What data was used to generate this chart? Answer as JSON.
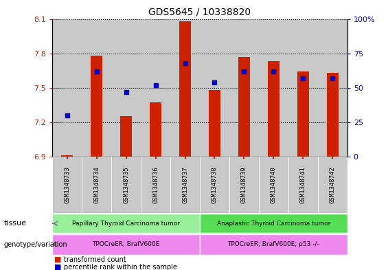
{
  "title": "GDS5645 / 10338820",
  "samples": [
    "GSM1348733",
    "GSM1348734",
    "GSM1348735",
    "GSM1348736",
    "GSM1348737",
    "GSM1348738",
    "GSM1348739",
    "GSM1348740",
    "GSM1348741",
    "GSM1348742"
  ],
  "bar_values": [
    6.91,
    7.78,
    7.25,
    7.37,
    8.08,
    7.48,
    7.77,
    7.73,
    7.64,
    7.63
  ],
  "dot_values": [
    30,
    62,
    47,
    52,
    68,
    54,
    62,
    62,
    57,
    57
  ],
  "ylim_left": [
    6.9,
    8.1
  ],
  "ylim_right": [
    0,
    100
  ],
  "yticks_left": [
    6.9,
    7.2,
    7.5,
    7.8,
    8.1
  ],
  "yticks_right": [
    0,
    25,
    50,
    75,
    100
  ],
  "bar_color": "#cc2200",
  "dot_color": "#0000cc",
  "bar_base": 6.9,
  "col_bg_color": "#c8c8c8",
  "tissue_groups": [
    {
      "label": "Papillary Thyroid Carcinoma tumor",
      "start": 0,
      "end": 5,
      "color": "#99ee99"
    },
    {
      "label": "Anaplastic Thyroid Carcinoma tumor",
      "start": 5,
      "end": 10,
      "color": "#55dd55"
    }
  ],
  "genotype_groups": [
    {
      "label": "TPOCreER; BrafV600E",
      "start": 0,
      "end": 5,
      "color": "#ee88ee"
    },
    {
      "label": "TPOCreER; BrafV600E; p53 -/-",
      "start": 5,
      "end": 10,
      "color": "#ee88ee"
    }
  ],
  "legend_items": [
    {
      "label": "transformed count",
      "color": "#cc2200"
    },
    {
      "label": "percentile rank within the sample",
      "color": "#0000cc"
    }
  ]
}
